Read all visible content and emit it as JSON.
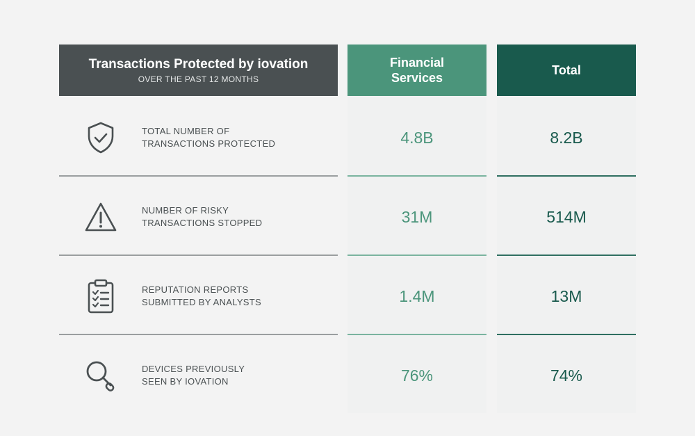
{
  "header": {
    "title": "Transactions Protected by iovation",
    "subtitle": "OVER THE PAST 12 MONTHS",
    "col_financial": "Financial Services",
    "col_total": "Total"
  },
  "colors": {
    "header_dark": "#4a5052",
    "financial": "#4b957b",
    "total": "#195a4d",
    "background": "#f3f3f3"
  },
  "rows": [
    {
      "icon": "shield-check-icon",
      "label_line1": "TOTAL NUMBER OF",
      "label_line2": "TRANSACTIONS PROTECTED",
      "financial": "4.8B",
      "total": "8.2B"
    },
    {
      "icon": "warning-icon",
      "label_line1": "NUMBER OF RISKY",
      "label_line2": "TRANSACTIONS STOPPED",
      "financial": "31M",
      "total": "514M"
    },
    {
      "icon": "clipboard-checklist-icon",
      "label_line1": "REPUTATION REPORTS",
      "label_line2": "SUBMITTED BY ANALYSTS",
      "financial": "1.4M",
      "total": "13M"
    },
    {
      "icon": "magnifier-icon",
      "label_line1": "DEVICES PREVIOUSLY",
      "label_line2": "SEEN BY IOVATION",
      "financial": "76%",
      "total": "74%"
    }
  ]
}
